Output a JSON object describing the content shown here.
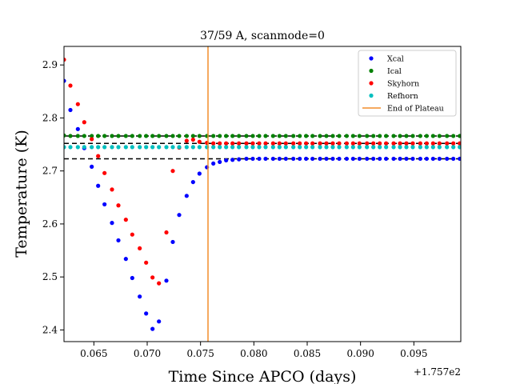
{
  "chart_data": {
    "type": "scatter",
    "title": "37/59 A, scanmode=0",
    "xlabel": "Time Since APCO (days)",
    "ylabel": "Temperature (K)",
    "x_offset_label": "+1.757e2",
    "xlim": [
      0.0622,
      0.0994
    ],
    "ylim": [
      2.378,
      2.935
    ],
    "xticks": [
      0.065,
      0.07,
      0.075,
      0.08,
      0.085,
      0.09,
      0.095
    ],
    "xtick_labels": [
      "0.065",
      "0.070",
      "0.075",
      "0.080",
      "0.085",
      "0.090",
      "0.095"
    ],
    "yticks": [
      2.4,
      2.5,
      2.6,
      2.7,
      2.8,
      2.9
    ],
    "ytick_labels": [
      "2.4",
      "2.5",
      "2.6",
      "2.7",
      "2.8",
      "2.9"
    ],
    "legend_position": "top-right",
    "grid": false,
    "series": [
      {
        "name": "Xcal",
        "color": "#0000ff",
        "points": [
          [
            0.0622,
            2.87
          ],
          [
            0.0628,
            2.815
          ],
          [
            0.0635,
            2.779
          ],
          [
            0.0641,
            2.743
          ],
          [
            0.0648,
            2.708
          ],
          [
            0.0654,
            2.672
          ],
          [
            0.066,
            2.637
          ],
          [
            0.0667,
            2.602
          ],
          [
            0.0673,
            2.569
          ],
          [
            0.068,
            2.534
          ],
          [
            0.0686,
            2.498
          ],
          [
            0.0693,
            2.463
          ],
          [
            0.0699,
            2.431
          ],
          [
            0.0705,
            2.402
          ],
          [
            0.0711,
            2.416
          ],
          [
            0.0718,
            2.493
          ],
          [
            0.0724,
            2.566
          ],
          [
            0.073,
            2.617
          ],
          [
            0.0737,
            2.653
          ],
          [
            0.0743,
            2.679
          ],
          [
            0.0749,
            2.695
          ],
          [
            0.0756,
            2.707
          ],
          [
            0.0762,
            2.714
          ],
          [
            0.0768,
            2.717
          ],
          [
            0.0774,
            2.72
          ],
          [
            0.078,
            2.721
          ],
          [
            0.0786,
            2.722
          ],
          [
            0.0793,
            2.723
          ],
          [
            0.0799,
            2.723
          ],
          [
            0.0805,
            2.723
          ],
          [
            0.0811,
            2.723
          ],
          [
            0.0818,
            2.723
          ],
          [
            0.0824,
            2.723
          ],
          [
            0.083,
            2.723
          ],
          [
            0.0837,
            2.723
          ],
          [
            0.0843,
            2.723
          ],
          [
            0.0849,
            2.723
          ],
          [
            0.0855,
            2.723
          ],
          [
            0.0862,
            2.723
          ],
          [
            0.0868,
            2.723
          ],
          [
            0.0874,
            2.723
          ],
          [
            0.088,
            2.723
          ],
          [
            0.0887,
            2.723
          ],
          [
            0.0893,
            2.723
          ],
          [
            0.0899,
            2.723
          ],
          [
            0.0906,
            2.723
          ],
          [
            0.0912,
            2.723
          ],
          [
            0.0918,
            2.723
          ],
          [
            0.0924,
            2.723
          ],
          [
            0.0931,
            2.723
          ],
          [
            0.0937,
            2.723
          ],
          [
            0.0943,
            2.723
          ],
          [
            0.0949,
            2.723
          ],
          [
            0.0956,
            2.723
          ],
          [
            0.0962,
            2.723
          ],
          [
            0.0968,
            2.723
          ],
          [
            0.0974,
            2.723
          ],
          [
            0.0981,
            2.723
          ],
          [
            0.0987,
            2.723
          ],
          [
            0.0993,
            2.723
          ]
        ]
      },
      {
        "name": "Ical",
        "color": "#008000",
        "points": [
          [
            0.0622,
            2.767
          ],
          [
            0.0628,
            2.766
          ],
          [
            0.0635,
            2.766
          ],
          [
            0.0641,
            2.766
          ],
          [
            0.0648,
            2.766
          ],
          [
            0.0654,
            2.766
          ],
          [
            0.066,
            2.766
          ],
          [
            0.0667,
            2.766
          ],
          [
            0.0673,
            2.766
          ],
          [
            0.068,
            2.766
          ],
          [
            0.0686,
            2.766
          ],
          [
            0.0693,
            2.766
          ],
          [
            0.0699,
            2.766
          ],
          [
            0.0705,
            2.766
          ],
          [
            0.0711,
            2.766
          ],
          [
            0.0718,
            2.766
          ],
          [
            0.0724,
            2.766
          ],
          [
            0.073,
            2.766
          ],
          [
            0.0737,
            2.766
          ],
          [
            0.0743,
            2.766
          ],
          [
            0.0749,
            2.766
          ],
          [
            0.0756,
            2.766
          ],
          [
            0.0762,
            2.766
          ],
          [
            0.0768,
            2.766
          ],
          [
            0.0774,
            2.766
          ],
          [
            0.078,
            2.766
          ],
          [
            0.0786,
            2.766
          ],
          [
            0.0793,
            2.766
          ],
          [
            0.0799,
            2.766
          ],
          [
            0.0805,
            2.766
          ],
          [
            0.0811,
            2.766
          ],
          [
            0.0818,
            2.766
          ],
          [
            0.0824,
            2.766
          ],
          [
            0.083,
            2.766
          ],
          [
            0.0837,
            2.766
          ],
          [
            0.0843,
            2.766
          ],
          [
            0.0849,
            2.766
          ],
          [
            0.0855,
            2.766
          ],
          [
            0.0862,
            2.766
          ],
          [
            0.0868,
            2.766
          ],
          [
            0.0874,
            2.766
          ],
          [
            0.088,
            2.766
          ],
          [
            0.0887,
            2.766
          ],
          [
            0.0893,
            2.766
          ],
          [
            0.0899,
            2.766
          ],
          [
            0.0906,
            2.766
          ],
          [
            0.0912,
            2.766
          ],
          [
            0.0918,
            2.766
          ],
          [
            0.0924,
            2.766
          ],
          [
            0.0931,
            2.766
          ],
          [
            0.0937,
            2.766
          ],
          [
            0.0943,
            2.766
          ],
          [
            0.0949,
            2.766
          ],
          [
            0.0956,
            2.766
          ],
          [
            0.0962,
            2.766
          ],
          [
            0.0968,
            2.766
          ],
          [
            0.0974,
            2.766
          ],
          [
            0.0981,
            2.766
          ],
          [
            0.0987,
            2.766
          ],
          [
            0.0993,
            2.766
          ]
        ]
      },
      {
        "name": "Skyhorn",
        "color": "#ff0000",
        "points": [
          [
            0.0622,
            2.91
          ],
          [
            0.0628,
            2.861
          ],
          [
            0.0635,
            2.826
          ],
          [
            0.0641,
            2.792
          ],
          [
            0.0648,
            2.76
          ],
          [
            0.0654,
            2.728
          ],
          [
            0.066,
            2.696
          ],
          [
            0.0667,
            2.665
          ],
          [
            0.0673,
            2.635
          ],
          [
            0.068,
            2.608
          ],
          [
            0.0686,
            2.58
          ],
          [
            0.0693,
            2.554
          ],
          [
            0.0699,
            2.527
          ],
          [
            0.0705,
            2.499
          ],
          [
            0.0711,
            2.488
          ],
          [
            0.0718,
            2.584
          ],
          [
            0.0724,
            2.7
          ],
          [
            0.073,
            2.744
          ],
          [
            0.0737,
            2.757
          ],
          [
            0.0743,
            2.759
          ],
          [
            0.0749,
            2.755
          ],
          [
            0.0756,
            2.753
          ],
          [
            0.0762,
            2.752
          ],
          [
            0.0768,
            2.752
          ],
          [
            0.0774,
            2.752
          ],
          [
            0.078,
            2.752
          ],
          [
            0.0786,
            2.752
          ],
          [
            0.0793,
            2.752
          ],
          [
            0.0799,
            2.752
          ],
          [
            0.0805,
            2.752
          ],
          [
            0.0811,
            2.752
          ],
          [
            0.0818,
            2.752
          ],
          [
            0.0824,
            2.752
          ],
          [
            0.083,
            2.752
          ],
          [
            0.0837,
            2.752
          ],
          [
            0.0843,
            2.752
          ],
          [
            0.0849,
            2.752
          ],
          [
            0.0855,
            2.752
          ],
          [
            0.0862,
            2.752
          ],
          [
            0.0868,
            2.752
          ],
          [
            0.0874,
            2.752
          ],
          [
            0.088,
            2.752
          ],
          [
            0.0887,
            2.752
          ],
          [
            0.0893,
            2.752
          ],
          [
            0.0899,
            2.752
          ],
          [
            0.0906,
            2.752
          ],
          [
            0.0912,
            2.752
          ],
          [
            0.0918,
            2.752
          ],
          [
            0.0924,
            2.752
          ],
          [
            0.0931,
            2.752
          ],
          [
            0.0937,
            2.752
          ],
          [
            0.0943,
            2.752
          ],
          [
            0.0949,
            2.752
          ],
          [
            0.0956,
            2.752
          ],
          [
            0.0962,
            2.752
          ],
          [
            0.0968,
            2.752
          ],
          [
            0.0974,
            2.752
          ],
          [
            0.0981,
            2.752
          ],
          [
            0.0987,
            2.752
          ],
          [
            0.0993,
            2.752
          ]
        ]
      },
      {
        "name": "Refhorn",
        "color": "#00bfbf",
        "points": [
          [
            0.0622,
            2.745
          ],
          [
            0.0628,
            2.745
          ],
          [
            0.0635,
            2.745
          ],
          [
            0.0641,
            2.745
          ],
          [
            0.0648,
            2.745
          ],
          [
            0.0654,
            2.745
          ],
          [
            0.066,
            2.745
          ],
          [
            0.0667,
            2.745
          ],
          [
            0.0673,
            2.745
          ],
          [
            0.068,
            2.745
          ],
          [
            0.0686,
            2.745
          ],
          [
            0.0693,
            2.745
          ],
          [
            0.0699,
            2.745
          ],
          [
            0.0705,
            2.745
          ],
          [
            0.0711,
            2.745
          ],
          [
            0.0718,
            2.745
          ],
          [
            0.0724,
            2.745
          ],
          [
            0.073,
            2.745
          ],
          [
            0.0737,
            2.745
          ],
          [
            0.0743,
            2.745
          ],
          [
            0.0749,
            2.745
          ],
          [
            0.0756,
            2.745
          ],
          [
            0.0762,
            2.745
          ],
          [
            0.0768,
            2.745
          ],
          [
            0.0774,
            2.745
          ],
          [
            0.078,
            2.745
          ],
          [
            0.0786,
            2.745
          ],
          [
            0.0793,
            2.745
          ],
          [
            0.0799,
            2.745
          ],
          [
            0.0805,
            2.745
          ],
          [
            0.0811,
            2.745
          ],
          [
            0.0818,
            2.745
          ],
          [
            0.0824,
            2.745
          ],
          [
            0.083,
            2.745
          ],
          [
            0.0837,
            2.745
          ],
          [
            0.0843,
            2.745
          ],
          [
            0.0849,
            2.745
          ],
          [
            0.0855,
            2.745
          ],
          [
            0.0862,
            2.745
          ],
          [
            0.0868,
            2.745
          ],
          [
            0.0874,
            2.745
          ],
          [
            0.088,
            2.745
          ],
          [
            0.0887,
            2.745
          ],
          [
            0.0893,
            2.745
          ],
          [
            0.0899,
            2.745
          ],
          [
            0.0906,
            2.745
          ],
          [
            0.0912,
            2.745
          ],
          [
            0.0918,
            2.745
          ],
          [
            0.0924,
            2.745
          ],
          [
            0.0931,
            2.745
          ],
          [
            0.0937,
            2.745
          ],
          [
            0.0943,
            2.745
          ],
          [
            0.0949,
            2.745
          ],
          [
            0.0956,
            2.745
          ],
          [
            0.0962,
            2.745
          ],
          [
            0.0968,
            2.745
          ],
          [
            0.0974,
            2.745
          ],
          [
            0.0981,
            2.745
          ],
          [
            0.0987,
            2.745
          ],
          [
            0.0993,
            2.745
          ]
        ]
      }
    ],
    "reference_lines": [
      {
        "type": "horizontal",
        "y": 2.766,
        "style": "dashed",
        "color": "#000000"
      },
      {
        "type": "horizontal",
        "y": 2.752,
        "style": "dashed",
        "color": "#000000"
      },
      {
        "type": "horizontal",
        "y": 2.723,
        "style": "dashed",
        "color": "#000000"
      }
    ],
    "vertical_lines": [
      {
        "name": "End of Plateau",
        "x": 0.0757,
        "color": "#f28e2b"
      }
    ]
  }
}
